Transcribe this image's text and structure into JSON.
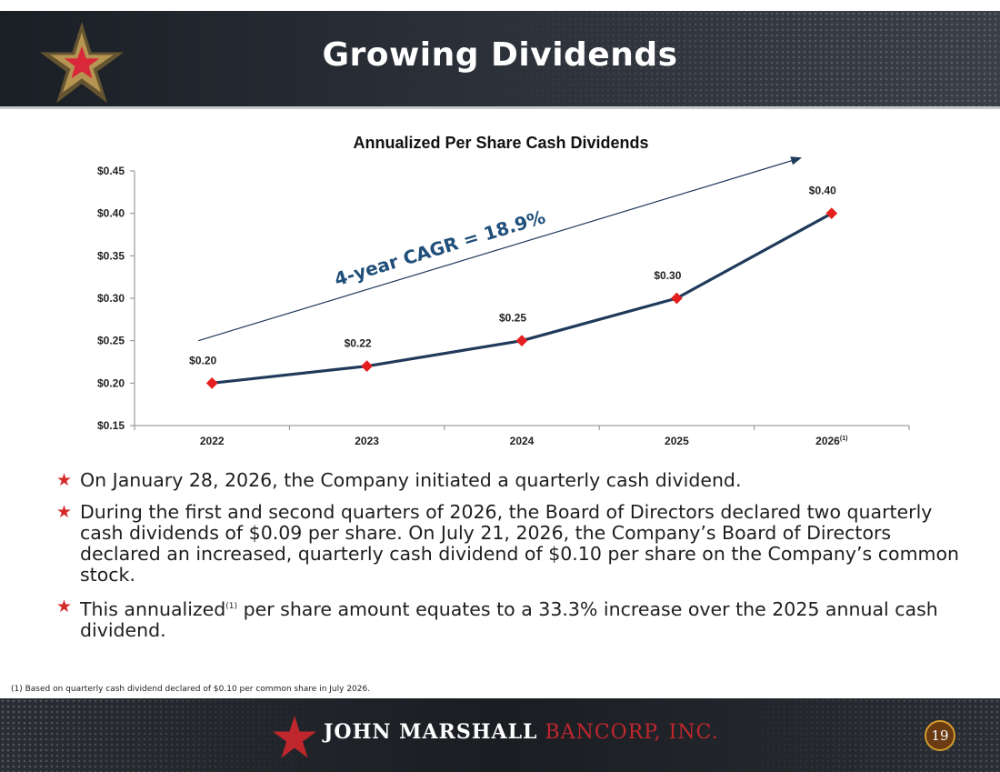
{
  "slide": {
    "title": "Growing Dividends",
    "page_number": "19"
  },
  "colors": {
    "line": "#1f3a5a",
    "marker": "#e41f1f",
    "accent_red": "#c0272d",
    "bullet_star": "#d52b2b"
  },
  "chart_data": {
    "type": "line",
    "title": "Annualized Per Share Cash Dividends",
    "categories": [
      "2022",
      "2023",
      "2024",
      "2025",
      "2026"
    ],
    "category_superscript": {
      "2026": "(1)"
    },
    "values": [
      0.2,
      0.22,
      0.25,
      0.3,
      0.4
    ],
    "data_labels": [
      "$0.20",
      "$0.22",
      "$0.25",
      "$0.30",
      "$0.40"
    ],
    "yticks": [
      0.15,
      0.2,
      0.25,
      0.3,
      0.35,
      0.4,
      0.45
    ],
    "ytick_labels": [
      "$0.15",
      "$0.20",
      "$0.25",
      "$0.30",
      "$0.35",
      "$0.40",
      "$0.45"
    ],
    "ylim": [
      0.15,
      0.45
    ],
    "xlabel": "",
    "ylabel": "",
    "grid": false,
    "legend": "none",
    "annotation": "4-year CAGR = 18.9%",
    "trend_arrow": {
      "from": {
        "category": "2022",
        "y": 0.25
      },
      "to": {
        "category": "2026",
        "y": 0.465
      }
    }
  },
  "bullets": [
    {
      "text": "On January 28, 2026, the Company initiated a quarterly cash dividend."
    },
    {
      "text": "During the first and second quarters of 2026, the Board of Directors declared two quarterly cash dividends of $0.09 per share. On July 21, 2026, the Company’s Board of Directors declared an increased, quarterly cash dividend of $0.10 per share on the Company’s common stock."
    },
    {
      "text_before": "This annualized",
      "sup": "(1)",
      "text_after": " per share amount equates to a 33.3% increase over the 2025 annual cash dividend."
    }
  ],
  "bullet_icon": "star-icon",
  "footnote": "(1)   Based on quarterly cash dividend declared of $0.10 per common share in July 2026.",
  "footer": {
    "brand_primary": "JOHN MARSHALL",
    "brand_secondary": "BANCORP, INC.",
    "logo_icon": "star-icon"
  }
}
